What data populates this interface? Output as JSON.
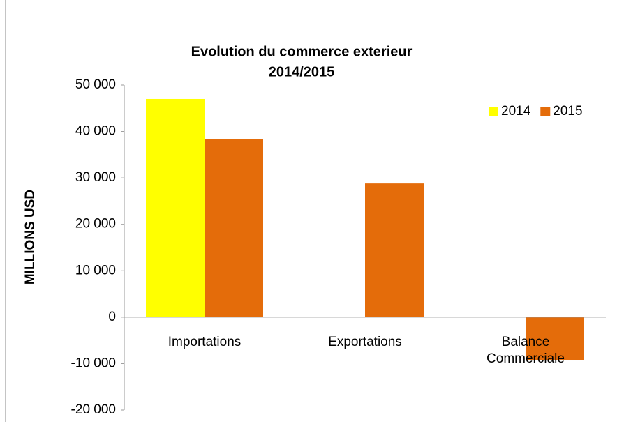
{
  "chart_data": {
    "type": "bar",
    "title": [
      "Evolution du commerce exterieur",
      "2014/2015"
    ],
    "y_label": "MILLIONS USD",
    "categories": [
      "Importations",
      "Exportations",
      "Balance Commerciale"
    ],
    "series": [
      {
        "name": "2014",
        "color": "#ffff00",
        "values": [
          47000,
          null,
          null
        ]
      },
      {
        "name": "2015",
        "color": "#e46c0a",
        "values": [
          38400,
          28800,
          -9300
        ]
      }
    ],
    "ylim": [
      -20000,
      50000
    ],
    "yticks": [
      {
        "value": -20000,
        "label": "-20 000"
      },
      {
        "value": -10000,
        "label": "-10 000"
      },
      0,
      {
        "value": 10000,
        "label": "10 000"
      },
      {
        "value": 20000,
        "label": "20 000"
      },
      {
        "value": 30000,
        "label": "30 000"
      },
      {
        "value": 40000,
        "label": "40 000"
      },
      {
        "value": 50000,
        "label": "50 000"
      }
    ],
    "legend": "top-right",
    "grid": false
  }
}
